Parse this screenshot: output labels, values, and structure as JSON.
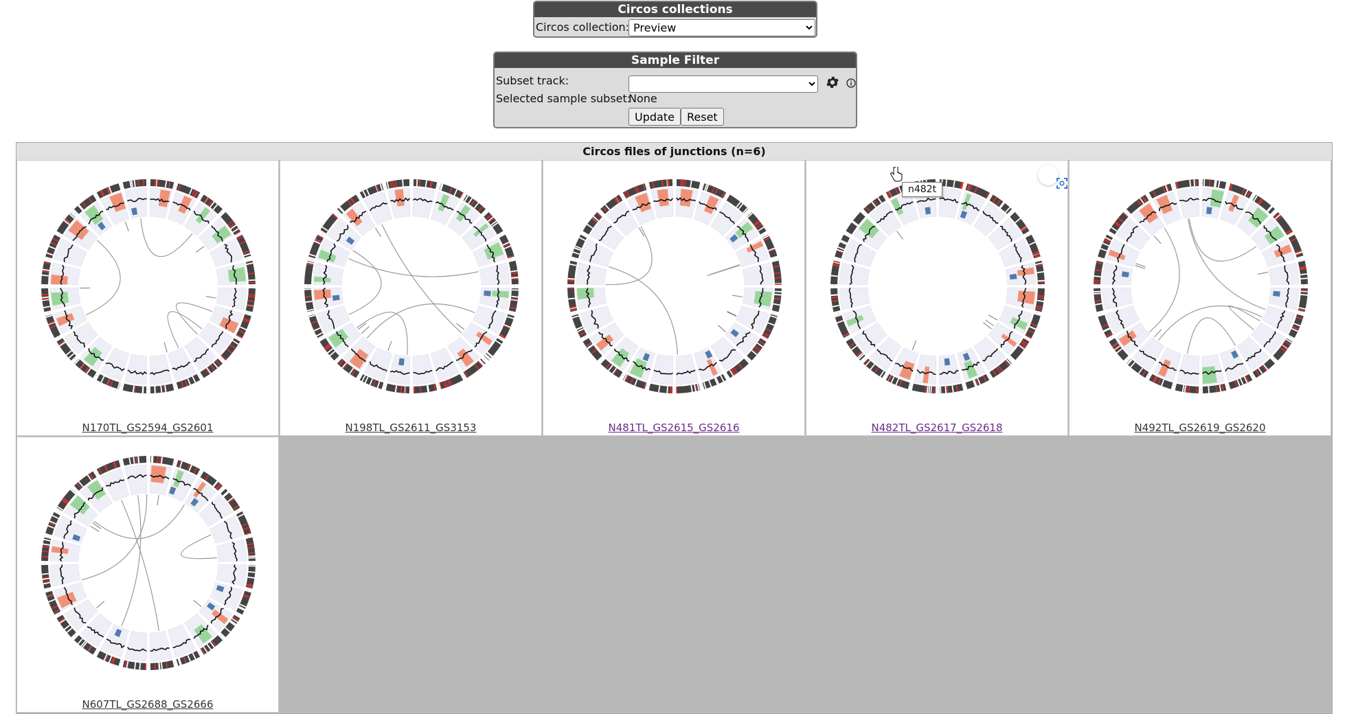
{
  "collection_panel": {
    "title": "Circos collections",
    "label": "Circos collection:",
    "selected": "Preview"
  },
  "filter_panel": {
    "title": "Sample Filter",
    "subset_label": "Subset track:",
    "subset_selected": "",
    "selected_subset_label": "Selected sample subset:",
    "selected_subset_value": "None",
    "update_label": "Update",
    "reset_label": "Reset",
    "settings_icon": "gear-icon",
    "info_icon": "info-icon"
  },
  "grid": {
    "title": "Circos files of junctions (n=6)",
    "items": [
      {
        "caption": "N170TL_GS2594_GS2601",
        "visited": false
      },
      {
        "caption": "N198TL_GS2611_GS3153",
        "visited": false
      },
      {
        "caption": "N481TL_GS2615_GS2616",
        "visited": true
      },
      {
        "caption": "N482TL_GS2617_GS2618",
        "visited": true
      },
      {
        "caption": "N492TL_GS2619_GS2620",
        "visited": false
      },
      {
        "caption": "N607TL_GS2688_GS2666",
        "visited": false
      }
    ]
  },
  "tooltip": {
    "text": "n482t"
  },
  "overlay_icon": "screen-capture-icon",
  "colors": {
    "panel_title_bg": "#4a4a4a",
    "gain": "#f08060",
    "loss": "#8ad08a",
    "blue": "#2a5d9a",
    "grid_bg": "#b8b8b8"
  }
}
